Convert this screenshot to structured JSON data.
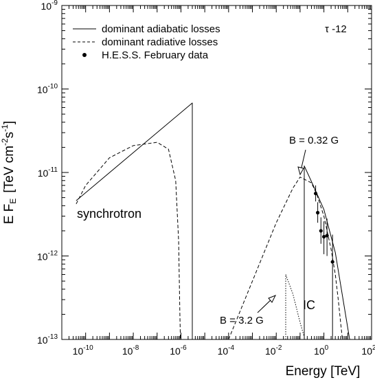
{
  "chart_data": {
    "type": "line",
    "xscale": "log",
    "yscale": "log",
    "xlim": [
      1e-11,
      100
    ],
    "ylim": [
      1e-13,
      1e-09
    ],
    "xlabel": "Energy [TeV]",
    "ylabel": {
      "base": "E F",
      "sub": "E",
      "unit": "[TeV cm",
      "e1": "-2",
      "mid": "s",
      "e2": "-1",
      "close": "]"
    },
    "x_ticks": [
      {
        "value": 1e-10,
        "base": "10",
        "exp": "-10"
      },
      {
        "value": 1e-08,
        "base": "10",
        "exp": "-8"
      },
      {
        "value": 1e-06,
        "base": "10",
        "exp": "-6"
      },
      {
        "value": 0.0001,
        "base": "10",
        "exp": "-4"
      },
      {
        "value": 0.01,
        "base": "10",
        "exp": "-2"
      },
      {
        "value": 1,
        "base": "10",
        "exp": "0"
      },
      {
        "value": 100,
        "base": "10",
        "exp": "2"
      }
    ],
    "y_ticks": [
      {
        "value": 1e-13,
        "base": "10",
        "exp": "-13"
      },
      {
        "value": 1e-12,
        "base": "10",
        "exp": "-12"
      },
      {
        "value": 1e-11,
        "base": "10",
        "exp": "-11"
      },
      {
        "value": 1e-10,
        "base": "10",
        "exp": "-10"
      },
      {
        "value": 1e-09,
        "base": "10",
        "exp": "-9"
      }
    ],
    "legend": {
      "position": "top-left",
      "entries": [
        {
          "label": "dominant adiabatic losses",
          "style": "solid"
        },
        {
          "label": "dominant radiative losses",
          "style": "dashed"
        },
        {
          "label": "H.E.S.S. February data",
          "style": "marker"
        }
      ]
    },
    "annotations": {
      "tau": "τ -12",
      "synchrotron": "synchrotron",
      "ic": "IC",
      "b_high": "B = 0.32 G",
      "b_low": "B = 3.2 G"
    },
    "series": [
      {
        "name": "dominant adiabatic losses",
        "style": "solid",
        "segments": [
          [
            [
              4e-11,
              4.6e-12
            ],
            [
              3e-06,
              6.8e-11
            ],
            [
              3e-06,
              1e-13
            ]
          ],
          [
            [
              0.15,
              1e-13
            ],
            [
              0.15,
              1.2e-11
            ],
            [
              0.4,
              6.5e-12
            ],
            [
              1.0,
              3.6e-12
            ],
            [
              3.0,
              1.1e-12
            ],
            [
              12,
              1e-13
            ]
          ]
        ]
      },
      {
        "name": "dominant radiative losses",
        "style": "dashed",
        "segments": [
          [
            [
              4e-11,
              4.2e-12
            ],
            [
              1e-10,
              7e-12
            ],
            [
              1e-09,
              1.5e-11
            ],
            [
              1e-08,
              2.1e-11
            ],
            [
              1e-07,
              2.3e-11
            ],
            [
              3e-07,
              1.9e-11
            ],
            [
              6e-07,
              8e-12
            ],
            [
              8e-07,
              1.5e-12
            ],
            [
              9e-07,
              2e-13
            ],
            [
              9.5e-07,
              1e-13
            ]
          ],
          [
            [
              0.0001,
              1e-13
            ],
            [
              0.001,
              5e-13
            ],
            [
              0.01,
              2.5e-12
            ],
            [
              0.05,
              6.5e-12
            ],
            [
              0.1,
              8.8e-12
            ],
            [
              0.3,
              7.5e-12
            ],
            [
              0.5,
              5.5e-12
            ],
            [
              1.0,
              3e-12
            ],
            [
              2.0,
              1.2e-12
            ],
            [
              3.0,
              6e-13
            ],
            [
              4.0,
              3e-13
            ],
            [
              5.0,
              1.6e-13
            ],
            [
              6.0,
              1e-13
            ]
          ]
        ]
      },
      {
        "name": "B = 3.2 G",
        "style": "dotted",
        "segments": [
          [
            [
              0.025,
              1e-13
            ],
            [
              0.025,
              6e-13
            ],
            [
              0.05,
              3.5e-13
            ],
            [
              0.1,
              1.6e-13
            ],
            [
              0.16,
              1e-13
            ]
          ]
        ]
      }
    ],
    "points": {
      "name": "H.E.S.S. February data",
      "values": [
        {
          "x": 0.45,
          "y": 5.6e-12,
          "ylo": 4.5e-12,
          "yhi": 7e-12
        },
        {
          "x": 0.55,
          "y": 3.3e-12,
          "ylo": 2.5e-12,
          "yhi": 4.4e-12
        },
        {
          "x": 0.75,
          "y": 2e-12,
          "ylo": 1.4e-12,
          "yhi": 2.9e-12
        },
        {
          "x": 1.0,
          "y": 1.7e-12,
          "ylo": 1.05e-12,
          "yhi": 2.6e-12
        },
        {
          "x": 1.35,
          "y": 1.75e-12,
          "ylo": 1e-12,
          "yhi": 2.8e-12
        },
        {
          "x": 2.3,
          "y": 8.5e-13,
          "ylo": 1e-13,
          "yhi": 1.8e-12
        }
      ]
    }
  }
}
